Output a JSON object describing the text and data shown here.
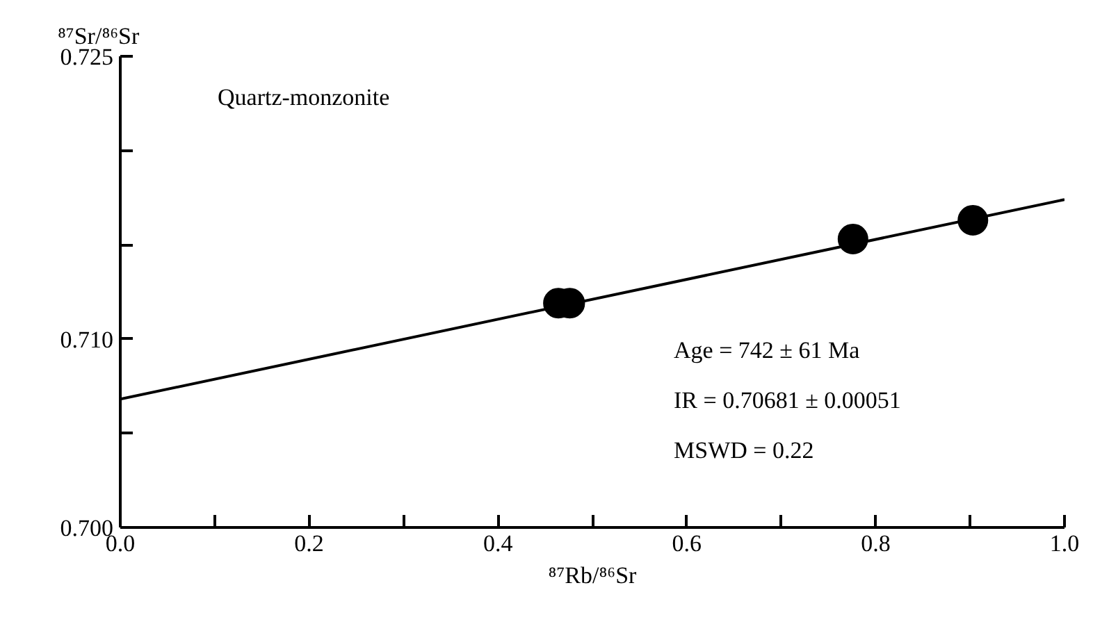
{
  "chart_data": {
    "type": "scatter",
    "xlabel": "⁸⁷Rb/⁸⁶Sr",
    "ylabel": "⁸⁷Sr/⁸⁶Sr",
    "series": [
      {
        "x": [
          0.464,
          0.476,
          0.776,
          0.903
        ],
        "values": [
          0.7119,
          0.7119,
          0.7153,
          0.7163
        ],
        "color": "#000000",
        "marker": "circle"
      },
      {
        "type": "line",
        "x": [
          0.0,
          1.0
        ],
        "values": [
          0.70681,
          0.7174
        ],
        "color": "#000000",
        "marker": "none",
        "line_style": "solid"
      }
    ],
    "xlim": [
      0,
      1.0
    ],
    "ylim": [
      0.7,
      0.725
    ],
    "xticks": [
      {
        "value": 0,
        "label": "0.0"
      },
      {
        "value": 0.1,
        "label": null
      },
      0.2,
      {
        "value": 0.3,
        "label": null
      },
      0.4,
      {
        "value": 0.5,
        "label": null
      },
      0.6,
      {
        "value": 0.7,
        "label": null
      },
      0.8,
      {
        "value": 0.9,
        "label": null
      },
      {
        "value": 1.0,
        "label": "1.0"
      }
    ],
    "yticks": [
      {
        "value": 0.7,
        "label": "0.700"
      },
      {
        "value": 0.705,
        "label": null
      },
      {
        "value": 0.71,
        "label": "0.710"
      },
      {
        "value": 0.715,
        "label": null
      },
      {
        "value": 0.72,
        "label": null
      },
      0.725
    ],
    "annotations": [
      "Quartz-monzonite",
      "Age = 742 ± 61 Ma",
      "IR  = 0.70681 ± 0.00051",
      "MSWD = 0.22"
    ]
  }
}
